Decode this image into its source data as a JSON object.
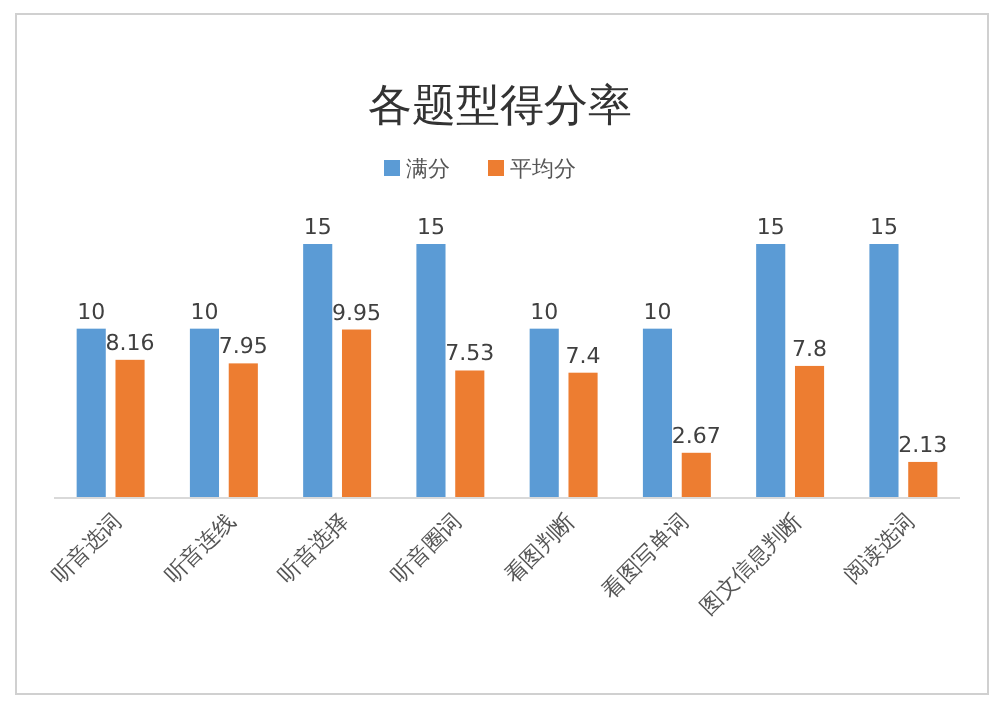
{
  "chart_data": {
    "type": "bar",
    "title": "各题型得分率",
    "categories": [
      "听音选词",
      "听音连线",
      "听音选择",
      "听音圈词",
      "看图判断",
      "看图写单词",
      "图文信息判断",
      "阅读选词"
    ],
    "series": [
      {
        "name": "满分",
        "color": "#5b9bd5",
        "values": [
          10,
          10,
          15,
          15,
          10,
          10,
          15,
          15
        ]
      },
      {
        "name": "平均分",
        "color": "#ed7d31",
        "values": [
          8.16,
          7.95,
          9.95,
          7.53,
          7.4,
          2.67,
          7.8,
          2.13
        ]
      }
    ],
    "data_labels": true,
    "legend": "top",
    "tick_labels": "x"
  }
}
